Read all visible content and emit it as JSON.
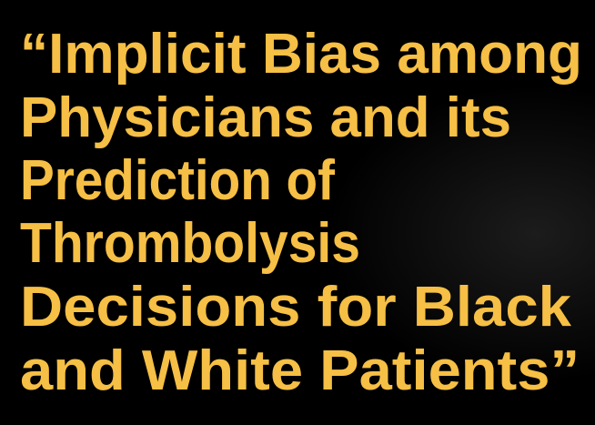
{
  "slide": {
    "title_lines": [
      "“Implicit Bias among",
      "Physicians and its",
      "Prediction of",
      "Thrombolysis",
      "Decisions for Black",
      "and White Patients”"
    ]
  }
}
